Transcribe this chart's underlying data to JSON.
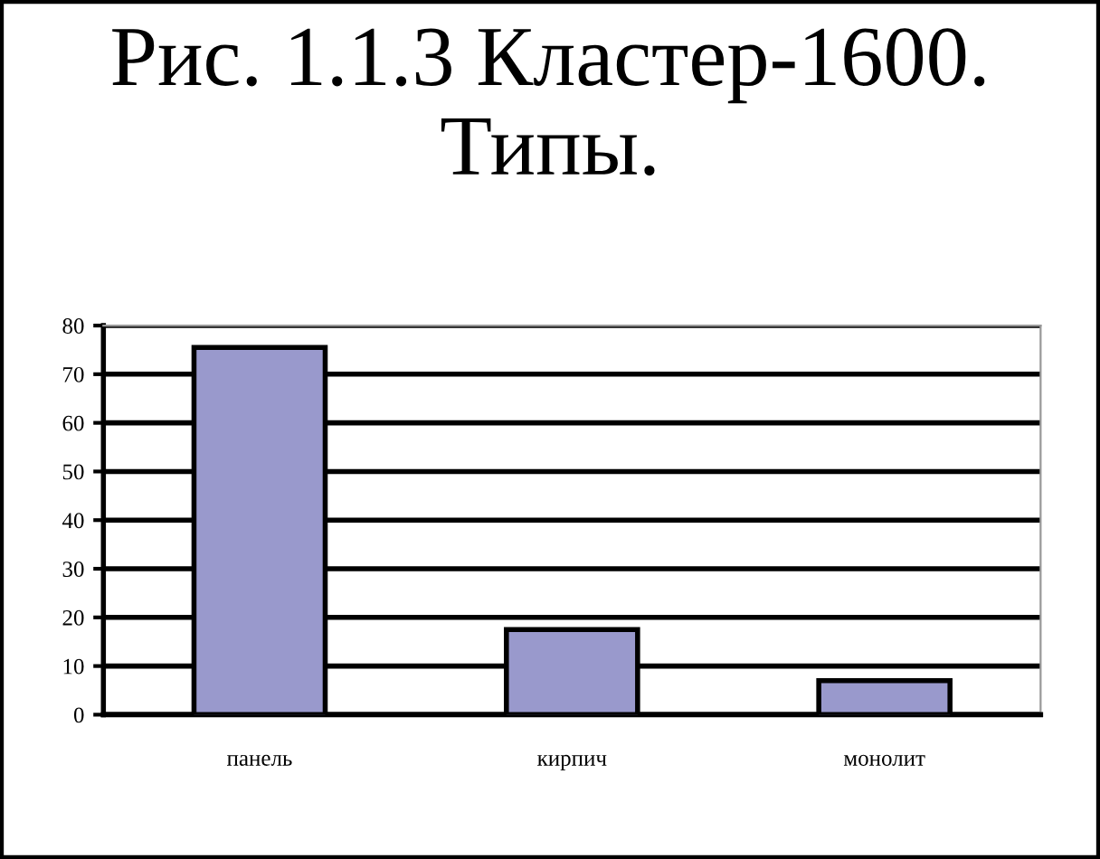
{
  "chart_data": {
    "type": "bar",
    "title": "Рис. 1.1.3 Кластер-1600.\nТипы.",
    "categories": [
      "панель",
      "кирпич",
      "монолит"
    ],
    "values": [
      75.5,
      17.5,
      7
    ],
    "color": "#9999cc",
    "ylim": [
      0,
      80
    ],
    "yticks": [
      0,
      10,
      20,
      30,
      40,
      50,
      60,
      70,
      80
    ],
    "grid": "y"
  }
}
